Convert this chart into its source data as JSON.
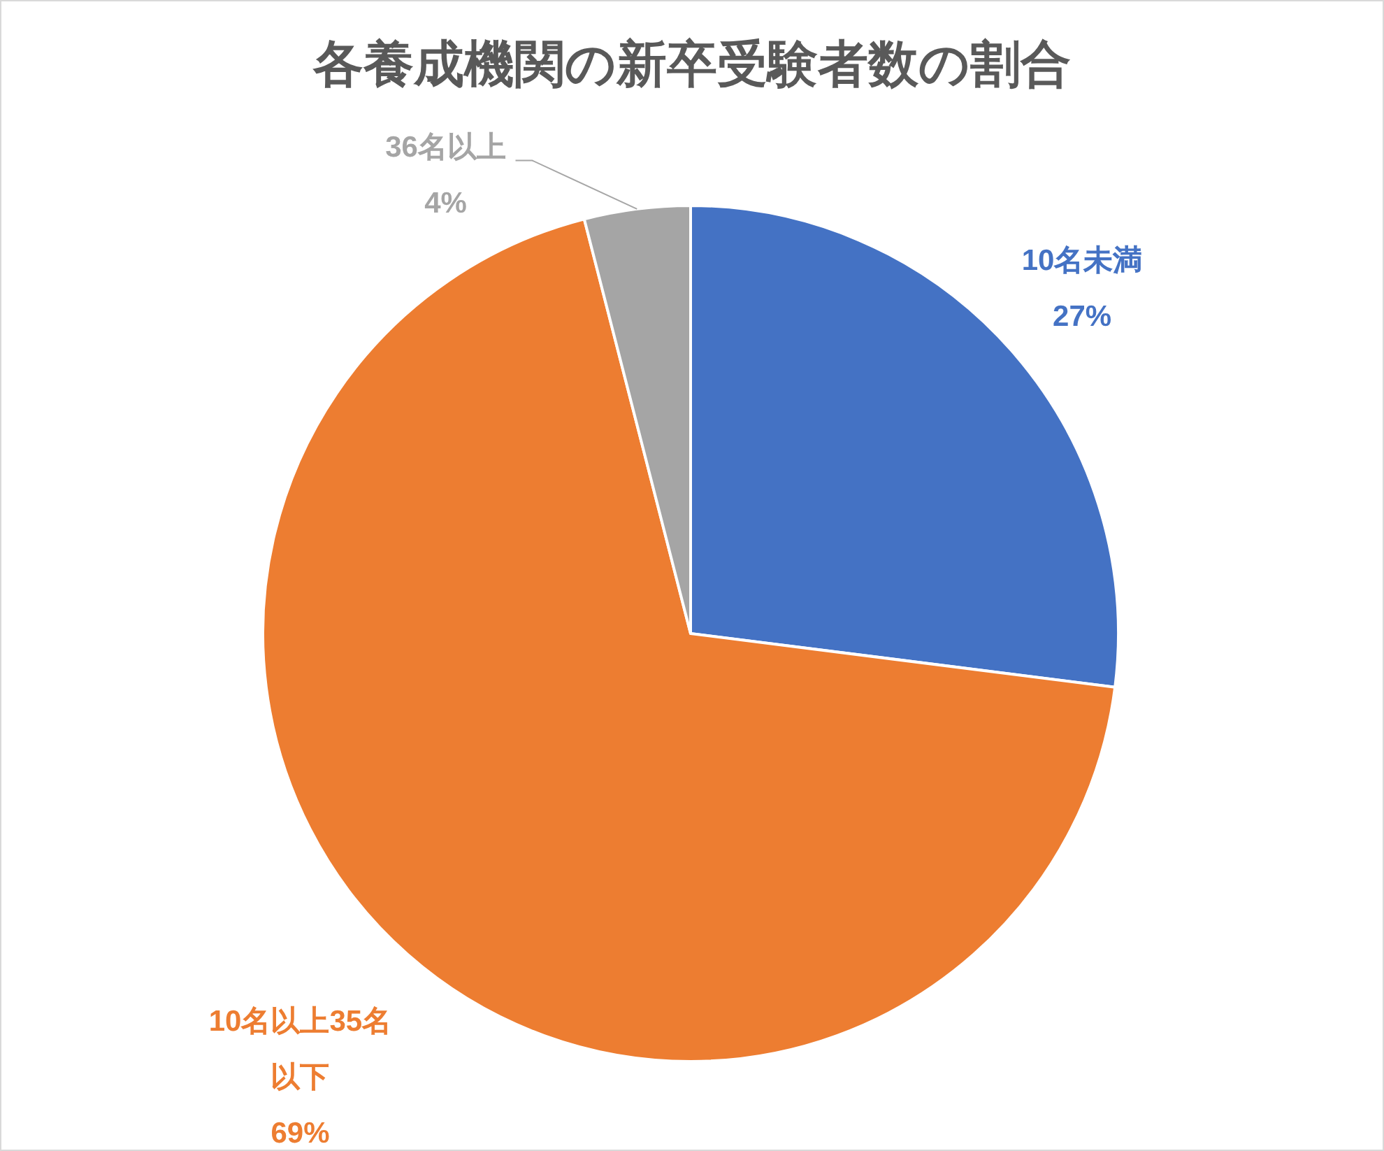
{
  "chart_data": {
    "type": "pie",
    "title": "各養成機関の新卒受験者数の割合",
    "categories": [
      "10名未満",
      "10名以上35名以下",
      "36名以上"
    ],
    "values": [
      27,
      69,
      4
    ],
    "colors": [
      "#4472c4",
      "#ed7d31",
      "#a5a5a5"
    ],
    "value_labels": [
      "27%",
      "69%",
      "4%"
    ]
  }
}
